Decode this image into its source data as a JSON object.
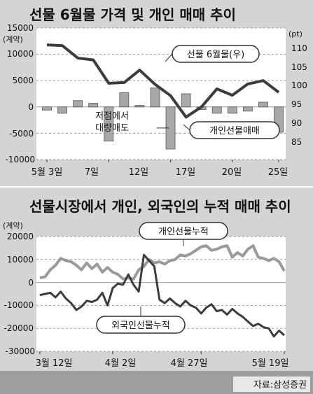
{
  "source": "자료:삼성증권",
  "colors": {
    "panel_bg": "#d4d4d4",
    "line_dark": "#3c3c3c",
    "line_light": "#9a9a9a",
    "bar": "#a8a8a8",
    "plot_bg": "#ffffff"
  },
  "chart_data": [
    {
      "type": "bar",
      "title": "선물 6월물 가격 및 개인 매매 추이",
      "left_axis": {
        "ylim": [
          -10000,
          15000
        ],
        "ticks": [
          "15000",
          "10000",
          "5000",
          "0",
          "-5000",
          "-10000"
        ],
        "unit": "(계약)"
      },
      "right_axis": {
        "ylim": [
          82.5,
          117.5
        ],
        "ticks": [
          "110",
          "105",
          "100",
          "95",
          "90",
          "85"
        ],
        "unit": "(pt)"
      },
      "x_tick_labels": [
        "5월 3일",
        "7일",
        "12일",
        "17일",
        "20일",
        "25일"
      ],
      "x_tick_index": [
        0,
        4,
        8,
        12,
        15,
        18
      ],
      "series": [
        {
          "name": "개인선물매매",
          "kind": "bar",
          "axis": "left",
          "values": [
            -600,
            -1200,
            1200,
            700,
            -6500,
            2700,
            300,
            3600,
            -8000,
            2500,
            -500,
            -1200,
            -1200,
            -800,
            900,
            -4800
          ]
        },
        {
          "name": "선물 6월물(우)",
          "kind": "line",
          "axis": "right",
          "values": [
            113,
            112.8,
            109.5,
            109,
            102.8,
            103,
            106.3,
            102.5,
            99.5,
            93.8,
            96.5,
            101.3,
            99.6,
            102.6,
            103.5,
            100.4
          ]
        }
      ],
      "annotations": [
        {
          "text": "저점에서",
          "text2": "대량매도"
        }
      ]
    },
    {
      "type": "line",
      "title": "선물시장에서 개인, 외국인의 누적 매매 추이",
      "ylim": [
        -30000,
        20000
      ],
      "y_ticks": [
        "20000",
        "10000",
        "0",
        "-10000",
        "-20000",
        "-30000"
      ],
      "y_unit": "(계약)",
      "x_tick_labels": [
        "3월 12일",
        "4월 2일",
        "4월 27일",
        "5월 19일"
      ],
      "x_tick_index": [
        0,
        14,
        31,
        47
      ],
      "series": [
        {
          "name": "개인선물누적",
          "values": [
            2000,
            2500,
            5500,
            7500,
            10500,
            9500,
            9000,
            7500,
            5500,
            8500,
            6000,
            8000,
            4500,
            6500,
            4500,
            3500,
            1500,
            2000,
            1500,
            5500,
            7000,
            10000,
            8500,
            9000,
            8000,
            9500,
            10000,
            12000,
            11500,
            12500,
            14000,
            15500,
            16000,
            14000,
            14500,
            15500,
            16000,
            11000,
            13000,
            11500,
            14500,
            16000,
            11000,
            10500,
            9500,
            10500,
            9000,
            5000
          ]
        },
        {
          "name": "외국인선물누적",
          "values": [
            -5500,
            -5000,
            -4500,
            -6500,
            -4000,
            -7000,
            -9000,
            -12000,
            -10500,
            -8000,
            -8500,
            -7500,
            -4500,
            -10000,
            -2500,
            -500,
            -1000,
            3500,
            -1000,
            -4000,
            12000,
            9500,
            7000,
            -7500,
            -9000,
            -7000,
            -9000,
            -10500,
            -8000,
            -10000,
            -11000,
            -13500,
            -11000,
            -9500,
            -12500,
            -12000,
            -14000,
            -11500,
            -13500,
            -15000,
            -17000,
            -19000,
            -18000,
            -19500,
            -20000,
            -23500,
            -21000,
            -23000
          ]
        }
      ]
    }
  ]
}
